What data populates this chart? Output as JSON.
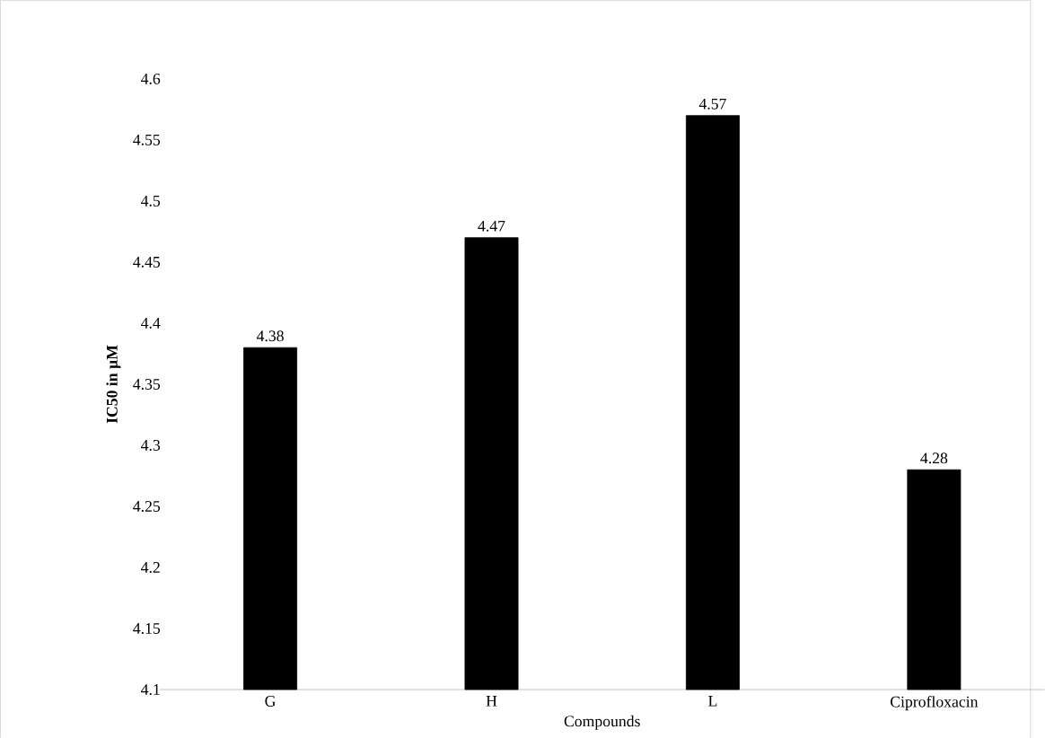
{
  "chart_data": {
    "type": "bar",
    "xlabel": "Compounds",
    "ylabel": "IC50 in µM",
    "categories": [
      "G",
      "H",
      "L",
      "Ciprofloxacin"
    ],
    "values": [
      4.38,
      4.47,
      4.57,
      4.28
    ],
    "color": "#000000",
    "ylim": [
      4.1,
      4.6
    ],
    "yticks": [
      4.1,
      4.15,
      4.2,
      4.25,
      4.3,
      4.35,
      4.4,
      4.45,
      4.5,
      4.55,
      4.6
    ],
    "data_labels": true
  }
}
